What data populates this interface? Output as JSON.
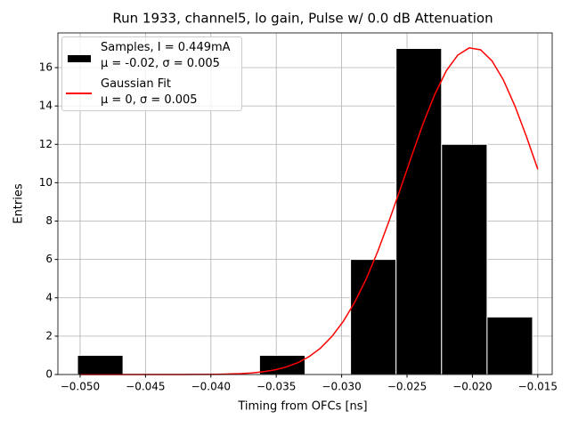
{
  "chart_data": {
    "type": "histogram",
    "title": "Run 1933, channel5, lo gain, Pulse w/ 0.0 dB Attenuation",
    "xlabel": "Timing from OFCs [ns]",
    "ylabel": "Entries",
    "name": "Samples, I = 0.449mA\nμ = -0.02, σ = 0.005",
    "color": "#000000",
    "bins": [
      -0.0502,
      -0.04672,
      -0.04324,
      -0.03976,
      -0.03628,
      -0.0328,
      -0.02932,
      -0.02584,
      -0.02236,
      -0.01888,
      -0.0154
    ],
    "values": [
      1,
      0,
      0,
      0,
      1,
      0,
      6,
      17,
      12,
      3
    ],
    "xlim": [
      -0.0517,
      -0.0139
    ],
    "ylim": [
      0,
      17.81
    ],
    "xticks": [
      {
        "value": -0.05,
        "label": "−0.050"
      },
      {
        "value": -0.045,
        "label": "−0.045"
      },
      {
        "value": -0.04,
        "label": "−0.040"
      },
      {
        "value": -0.035,
        "label": "−0.035"
      },
      {
        "value": -0.03,
        "label": "−0.030"
      },
      {
        "value": -0.025,
        "label": "−0.025"
      },
      {
        "value": -0.02,
        "label": "−0.020"
      },
      {
        "value": -0.015,
        "label": "−0.015"
      }
    ],
    "yticks": [
      0,
      2,
      4,
      6,
      8,
      10,
      12,
      14,
      16
    ],
    "grid": true,
    "legend": "upper left",
    "fit": {
      "type": "line",
      "name": "Gaussian Fit\nμ = 0, σ = 0.005",
      "color": "#ff0000",
      "x": [
        -0.05,
        -0.049125,
        -0.04825,
        -0.047375,
        -0.0465,
        -0.045625,
        -0.04475,
        -0.043875,
        -0.043,
        -0.042125,
        -0.04125,
        -0.040375,
        -0.0395,
        -0.038625,
        -0.03775,
        -0.036875,
        -0.036,
        -0.035125,
        -0.03425,
        -0.033375,
        -0.0325,
        -0.031625,
        -0.03075,
        -0.029875,
        -0.029,
        -0.028125,
        -0.02725,
        -0.026375,
        -0.0255,
        -0.024625,
        -0.02375,
        -0.022875,
        -0.022,
        -0.021125,
        -0.02025,
        -0.019375,
        -0.0185,
        -0.017625,
        -0.01675,
        -0.015875,
        -0.015
      ],
      "values": [
        0,
        0,
        0,
        0,
        0,
        0,
        0,
        0,
        0,
        0,
        0.004,
        0.007,
        0.014,
        0.027,
        0.048,
        0.084,
        0.144,
        0.24,
        0.39,
        0.61,
        0.93,
        1.37,
        1.98,
        2.77,
        3.77,
        4.98,
        6.4,
        8.0,
        9.7,
        11.44,
        13.12,
        14.61,
        15.83,
        16.65,
        17.03,
        16.93,
        16.35,
        15.35,
        14.0,
        12.42,
        10.7
      ]
    }
  }
}
